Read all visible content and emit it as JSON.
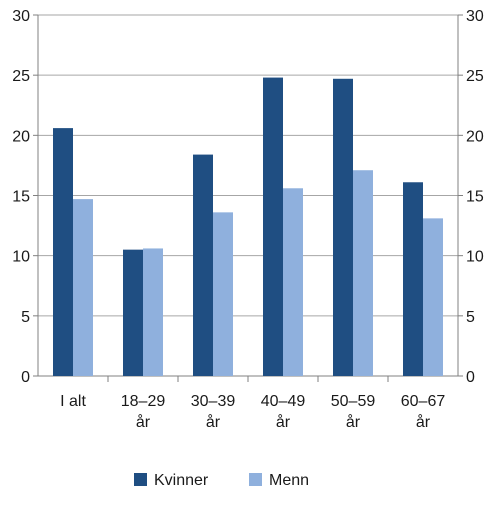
{
  "chart_data": {
    "type": "bar",
    "categories": [
      [
        "I alt"
      ],
      [
        "18–29",
        "år"
      ],
      [
        "30–39",
        "år"
      ],
      [
        "40–49",
        "år"
      ],
      [
        "50–59",
        "år"
      ],
      [
        "60–67",
        "år"
      ]
    ],
    "series": [
      {
        "name": "Kvinner",
        "color": "#1f4e82",
        "values": [
          20.6,
          10.5,
          18.4,
          24.8,
          24.7,
          16.1
        ]
      },
      {
        "name": "Menn",
        "color": "#8fb0dd",
        "values": [
          14.7,
          10.6,
          13.6,
          15.6,
          17.1,
          13.1
        ]
      }
    ],
    "ylim": [
      0,
      30
    ],
    "yticks": [
      0,
      5,
      10,
      15,
      20,
      25,
      30
    ],
    "y_axis_both_sides": true,
    "grid": true,
    "grid_color": "#a6a6a6",
    "axis_color": "#808080",
    "legend": "bottom-center",
    "title": "",
    "xlabel": "",
    "ylabel": ""
  }
}
